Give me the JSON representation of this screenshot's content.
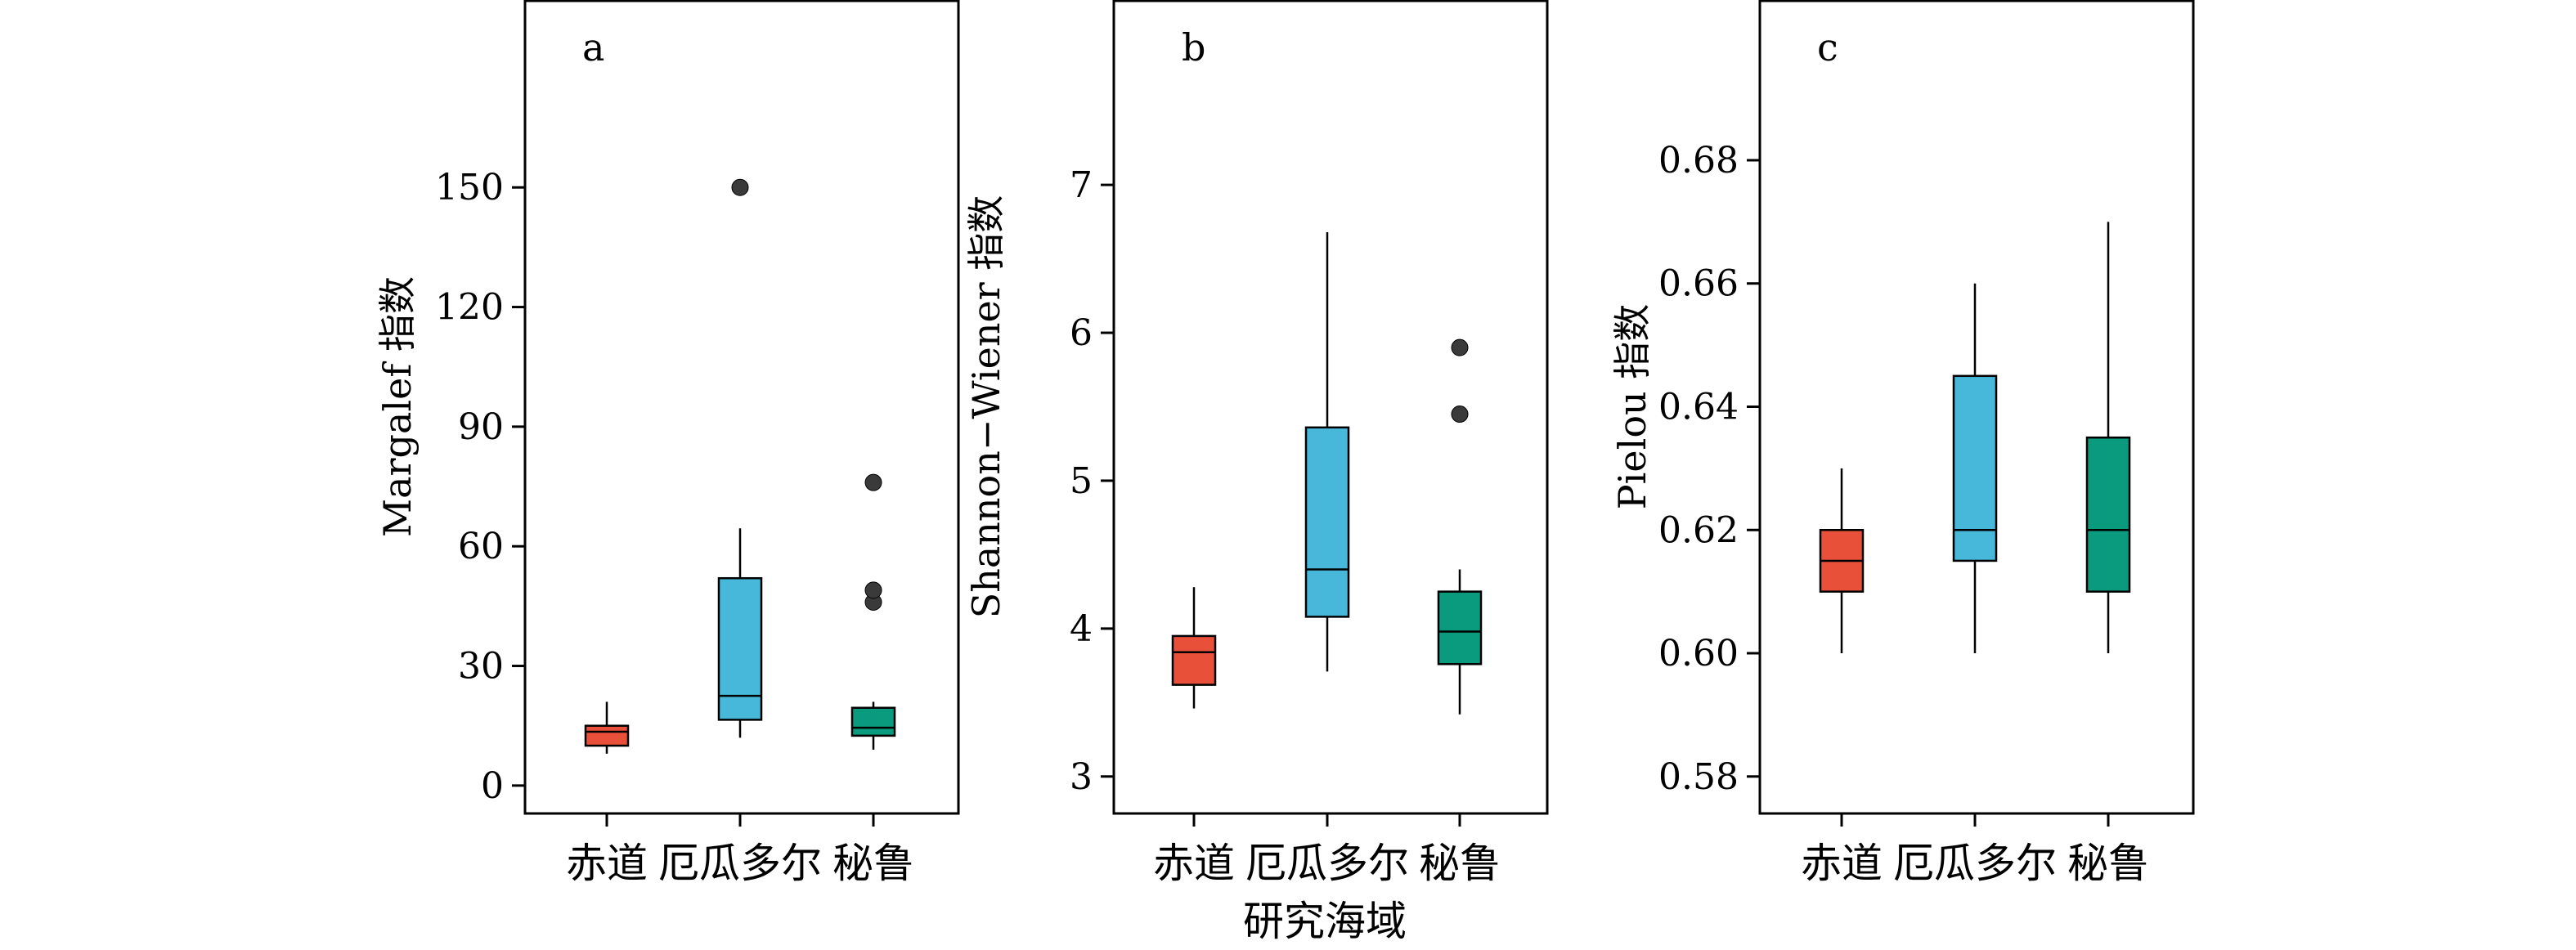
{
  "colors": {
    "equator": "#e8503a",
    "ecuador": "#47b8d9",
    "peru": "#0a9a7e",
    "outlier": "#3a3a3a",
    "axis": "#000000"
  },
  "shared_xlabel": "研究海域",
  "chart_data": [
    {
      "type": "box",
      "panel_label": "a",
      "ylabel": "Margalef 指数",
      "ylim": [
        -7,
        197
      ],
      "yticks": [
        0,
        30,
        60,
        90,
        120,
        150
      ],
      "ytick_labels": [
        "0",
        "30",
        "60",
        "90",
        "120",
        "150"
      ],
      "categories": [
        "赤道",
        "厄瓜多尔",
        "秘鲁"
      ],
      "boxes": [
        {
          "category": "赤道",
          "whisker_low": 8,
          "q1": 10,
          "median": 13.5,
          "q3": 15,
          "whisker_high": 21,
          "outliers": []
        },
        {
          "category": "厄瓜多尔",
          "whisker_low": 12,
          "q1": 16.5,
          "median": 22.5,
          "q3": 52,
          "whisker_high": 64.5,
          "outliers": [
            150
          ]
        },
        {
          "category": "秘鲁",
          "whisker_low": 9,
          "q1": 12.5,
          "median": 14.5,
          "q3": 19.5,
          "whisker_high": 21,
          "outliers": [
            46,
            49,
            76
          ]
        }
      ]
    },
    {
      "type": "box",
      "panel_label": "b",
      "ylabel": "Shannon−Wiener 指数",
      "ylim": [
        2.75,
        8.25
      ],
      "yticks": [
        3,
        4,
        5,
        6,
        7
      ],
      "ytick_labels": [
        "3",
        "4",
        "5",
        "6",
        "7"
      ],
      "categories": [
        "赤道",
        "厄瓜多尔",
        "秘鲁"
      ],
      "boxes": [
        {
          "category": "赤道",
          "whisker_low": 3.46,
          "q1": 3.62,
          "median": 3.84,
          "q3": 3.95,
          "whisker_high": 4.28,
          "outliers": []
        },
        {
          "category": "厄瓜多尔",
          "whisker_low": 3.71,
          "q1": 4.08,
          "median": 4.4,
          "q3": 5.36,
          "whisker_high": 6.68,
          "outliers": []
        },
        {
          "category": "秘鲁",
          "whisker_low": 3.42,
          "q1": 3.76,
          "median": 3.98,
          "q3": 4.25,
          "whisker_high": 4.4,
          "outliers": [
            5.45,
            5.9
          ]
        }
      ]
    },
    {
      "type": "box",
      "panel_label": "c",
      "ylabel": "Pielou 指数",
      "ylim": [
        0.574,
        0.706
      ],
      "yticks": [
        0.58,
        0.6,
        0.62,
        0.64,
        0.66,
        0.68
      ],
      "ytick_labels": [
        "0.58",
        "0.60",
        "0.62",
        "0.64",
        "0.66",
        "0.68"
      ],
      "categories": [
        "赤道",
        "厄瓜多尔",
        "秘鲁"
      ],
      "boxes": [
        {
          "category": "赤道",
          "whisker_low": 0.6,
          "q1": 0.61,
          "median": 0.615,
          "q3": 0.62,
          "whisker_high": 0.63,
          "outliers": []
        },
        {
          "category": "厄瓜多尔",
          "whisker_low": 0.6,
          "q1": 0.615,
          "median": 0.62,
          "q3": 0.645,
          "whisker_high": 0.66,
          "outliers": []
        },
        {
          "category": "秘鲁",
          "whisker_low": 0.6,
          "q1": 0.61,
          "median": 0.62,
          "q3": 0.635,
          "whisker_high": 0.67,
          "outliers": []
        }
      ]
    }
  ]
}
